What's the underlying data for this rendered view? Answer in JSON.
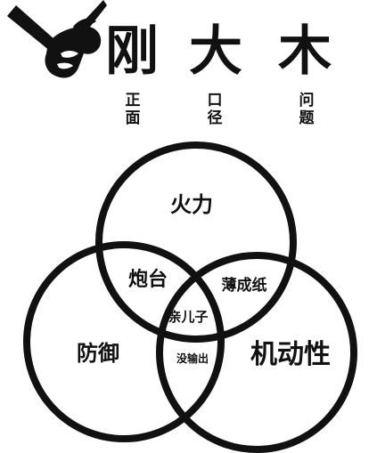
{
  "header": {
    "title_chars": [
      "刚",
      "大",
      "木"
    ],
    "subtitle_columns": [
      [
        "正",
        "面"
      ],
      [
        "口",
        "径"
      ],
      [
        "问",
        "题"
      ]
    ]
  },
  "venn": {
    "circles": [
      {
        "name": "firepower",
        "label": "火力"
      },
      {
        "name": "defense",
        "label": "防御"
      },
      {
        "name": "mobility",
        "label": "机动性"
      }
    ],
    "intersections": {
      "firepower_defense": "炮台",
      "firepower_mobility": "薄成纸",
      "defense_mobility": "没输出",
      "all_three": "亲儿子"
    }
  },
  "colors": {
    "ink": "#111111",
    "background": "#ffffff"
  }
}
